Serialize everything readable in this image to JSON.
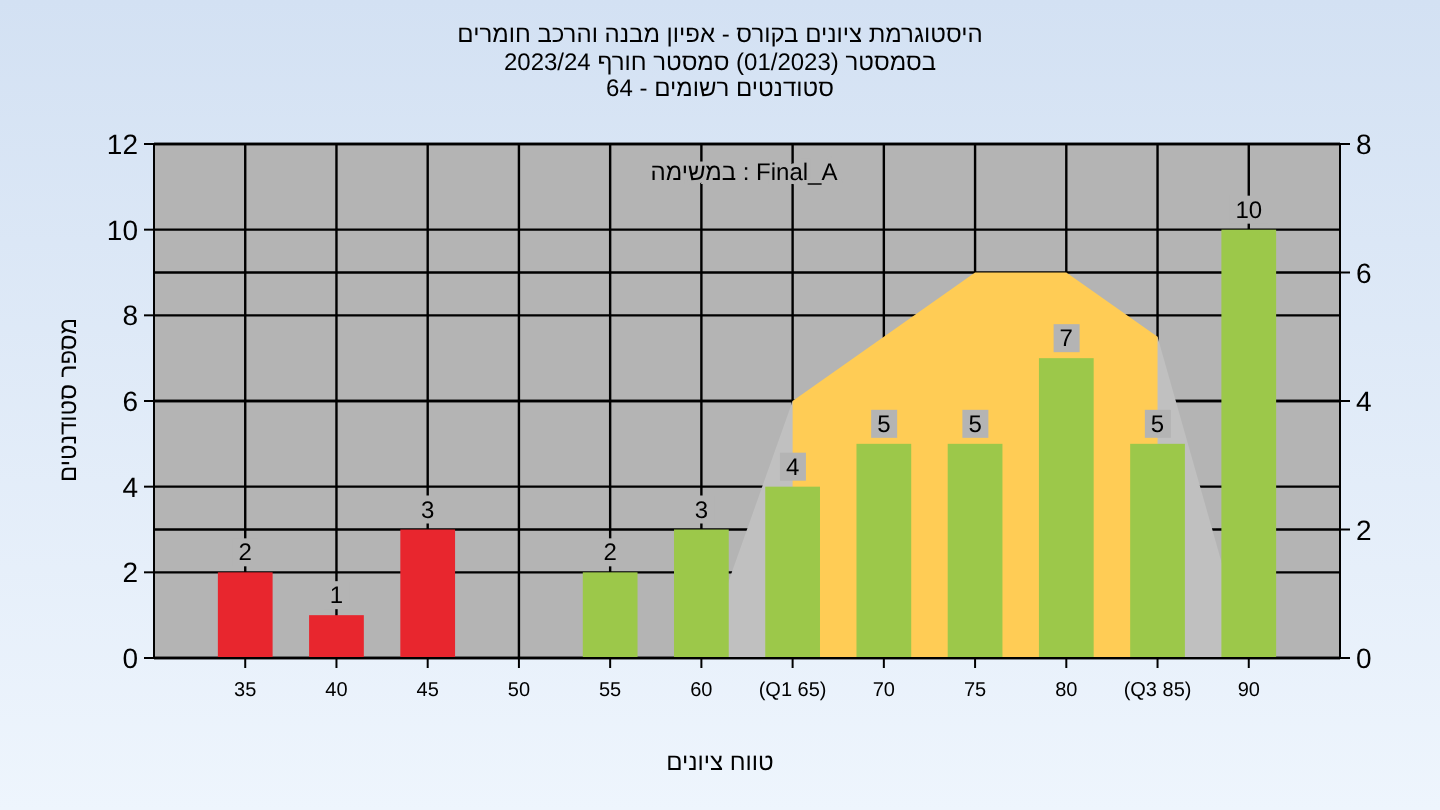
{
  "chart_data": {
    "type": "bar",
    "title": "היסטוגרמת ציונים בקורס - אפיון מבנה והרכב חומרים",
    "subtitle": "בסמסטר  (01/2023)  סמסטר חורף 2023/24\nסטודנטים רשומים - 64",
    "xlabel": "טווח ציונים",
    "ylabel": "מספר סטודנטים",
    "x": [
      35,
      40,
      45,
      50,
      55,
      60,
      65,
      70,
      75,
      80,
      85,
      90
    ],
    "xlim": [
      30,
      95
    ],
    "xticks": [
      35,
      40,
      45,
      50,
      55,
      60,
      {
        "value": 65,
        "label": "(Q1 65)"
      },
      70,
      75,
      80,
      {
        "value": 85,
        "label": "(Q3 85)"
      },
      90
    ],
    "ylim": [
      0,
      12
    ],
    "yticks": [
      0,
      2,
      4,
      6,
      8,
      10,
      12
    ],
    "y2lim": [
      0,
      8
    ],
    "y2ticks": [
      0,
      2,
      4,
      6,
      8
    ],
    "grid": true,
    "series": [
      {
        "type": "area",
        "axis": "y2",
        "color": "#c0c0c0",
        "x": [
          60,
          65,
          85,
          90
        ],
        "values": [
          0,
          4,
          5,
          0
        ]
      },
      {
        "type": "area",
        "axis": "y2",
        "color": "#ffcc55",
        "x": [
          65,
          65,
          70,
          75,
          80,
          85,
          85
        ],
        "values": [
          0,
          4,
          5,
          6,
          6,
          5,
          0
        ]
      },
      {
        "type": "bar",
        "colors": [
          "#e8262e",
          "#e8262e",
          "#e8262e",
          "#9cc84a",
          "#9cc84a",
          "#9cc84a",
          "#9cc84a",
          "#9cc84a",
          "#9cc84a",
          "#9cc84a",
          "#9cc84a",
          "#9cc84a"
        ],
        "values": [
          2,
          1,
          3,
          0,
          2,
          3,
          4,
          5,
          5,
          7,
          5,
          10
        ],
        "value_labels": [
          "2",
          "1",
          "3",
          null,
          "2",
          "3",
          "4",
          "5",
          "5",
          "7",
          "5",
          "10"
        ]
      }
    ],
    "annotations": [
      "במשימה : Final_A"
    ]
  }
}
